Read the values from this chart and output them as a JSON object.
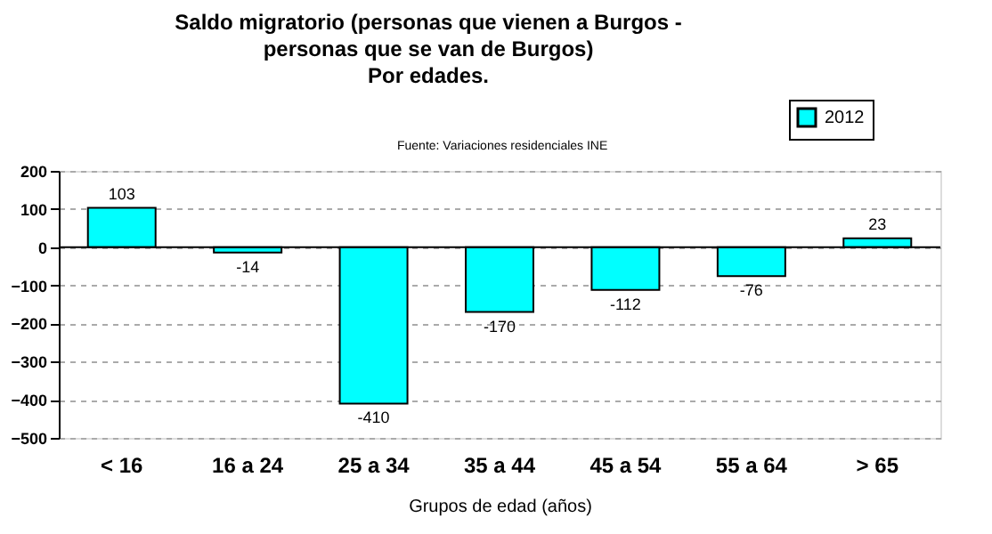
{
  "chart_data": {
    "type": "bar",
    "title": "Saldo migratorio  (personas que vienen a Burgos -\npersonas que se van de Burgos)\nPor edades.",
    "annotations": [
      "Fuente: Variaciones residenciales INE"
    ],
    "xlabel": "Grupos de edad (años)",
    "categories": [
      "< 16",
      "16 a 24",
      "25 a 34",
      "35 a 44",
      "45 a 54",
      "55 a 64",
      "> 65"
    ],
    "series": [
      {
        "name": "2012",
        "color": "#00ffff",
        "values": [
          103,
          -14,
          -410,
          -170,
          -112,
          -76,
          23
        ]
      }
    ],
    "ylim": [
      -500,
      200
    ],
    "yticks": [
      -500,
      -400,
      -300,
      -200,
      -100,
      0,
      100,
      200
    ],
    "grid": "y",
    "legend": "top right",
    "data_labels": true
  }
}
